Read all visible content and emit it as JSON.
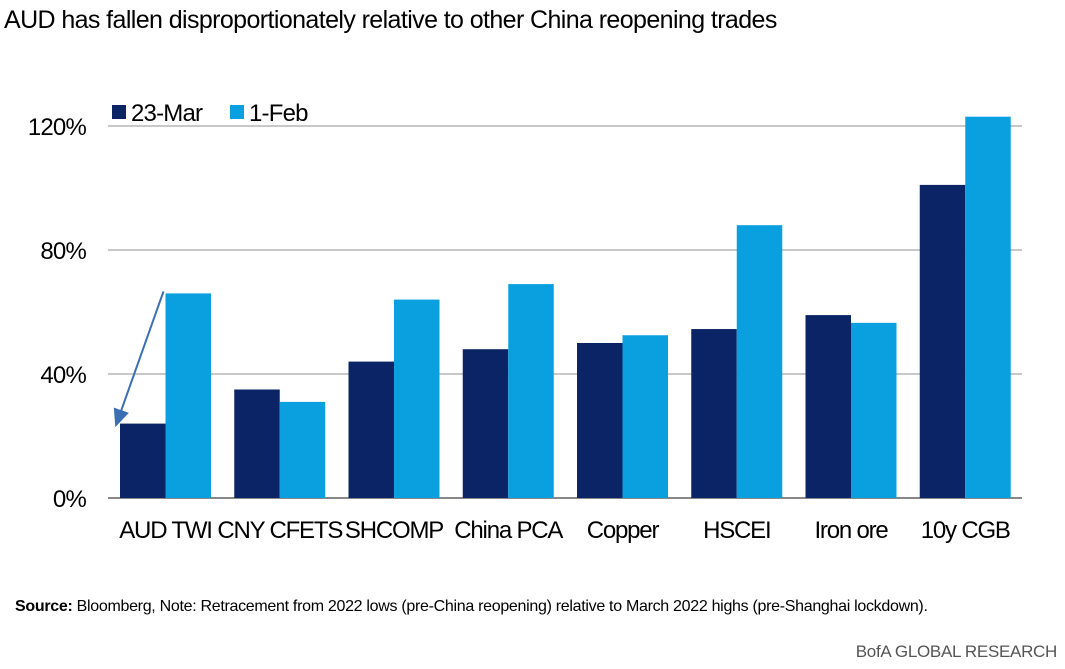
{
  "title": "AUD has fallen disproportionately relative to other China reopening trades",
  "chart_data": {
    "type": "bar",
    "categories": [
      "AUD TWI",
      "CNY CFETS",
      "SHCOMP",
      "China  PCA",
      "Copper",
      "HSCEI",
      "Iron ore",
      "10y CGB"
    ],
    "series": [
      {
        "name": "23-Mar",
        "color": "#0a2466",
        "values": [
          24,
          35,
          44,
          48,
          50,
          54.5,
          59,
          101
        ]
      },
      {
        "name": "1-Feb",
        "color": "#0aa0df",
        "values": [
          66,
          31,
          64,
          69,
          52.5,
          88,
          56.5,
          123
        ]
      }
    ],
    "yticks": [
      "0%",
      "40%",
      "80%",
      "120%"
    ],
    "ytick_values": [
      0,
      40,
      80,
      120
    ],
    "ylim": [
      0,
      120
    ],
    "grid": true,
    "legend_position": "top-left",
    "annotation": "arrow from AUD TWI 1-Feb bar down to 23-Mar bar"
  },
  "source": {
    "label": "Source:",
    "text": " Bloomberg, Note: Retracement from 2022 lows (pre-China reopening) relative to March 2022 highs (pre-Shanghai lockdown)."
  },
  "brand": "BofA GLOBAL RESEARCH"
}
